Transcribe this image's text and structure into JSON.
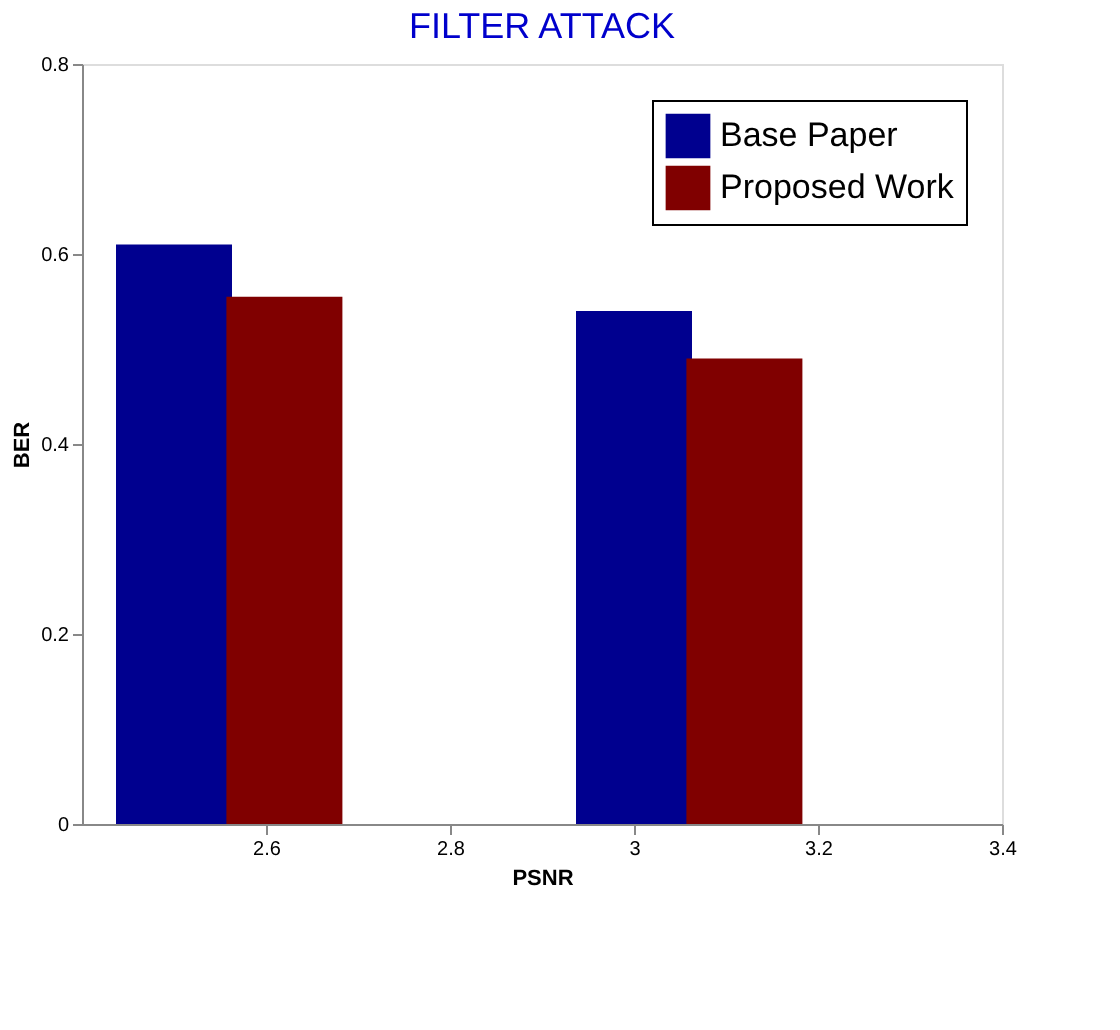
{
  "chart_data": {
    "type": "bar",
    "title": "FILTER ATTACK",
    "xlabel": "PSNR",
    "ylabel": "BER",
    "series": [
      {
        "name": "Base Paper",
        "color": "#00008f",
        "x": [
          2.5,
          3.0
        ],
        "values": [
          0.61,
          0.54
        ]
      },
      {
        "name": "Proposed Work",
        "color": "#800000",
        "x": [
          2.62,
          3.12
        ],
        "values": [
          0.555,
          0.49
        ]
      }
    ],
    "xlim": [
      2.4,
      3.4
    ],
    "xticks": [
      2.6,
      2.8,
      3,
      3.2,
      3.4
    ],
    "ylim": [
      0,
      0.8
    ],
    "yticks": [
      0,
      0.2,
      0.4,
      0.6,
      0.8
    ],
    "grid": false,
    "legend": "top right"
  }
}
